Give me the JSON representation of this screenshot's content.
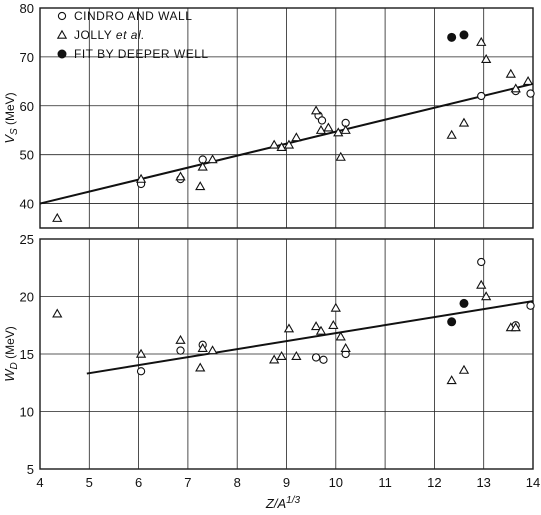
{
  "chart_data": [
    {
      "type": "scatter",
      "title": "",
      "xlabel": "Z/A^1/3",
      "ylabel": "V_S (MeV)",
      "ylabel_main": "V",
      "ylabel_sub": "S",
      "ylabel_unit": "(MeV)",
      "xlim": [
        4,
        14
      ],
      "ylim": [
        35,
        80
      ],
      "xticks": [
        "4",
        "5",
        "6",
        "7",
        "8",
        "9",
        "10",
        "11",
        "12",
        "13",
        "14"
      ],
      "yticks": [
        "40",
        "50",
        "60",
        "70",
        "80"
      ],
      "ytick_values": [
        40,
        50,
        60,
        70,
        80
      ],
      "grid": true,
      "legend": {
        "placement": "top-left",
        "entries": [
          {
            "marker": "circle-open",
            "label": "CINDRO AND WALL"
          },
          {
            "marker": "triangle-open",
            "label_pre": "JOLLY ",
            "label_ital": "et al.",
            "label": "JOLLY et al."
          },
          {
            "marker": "circle-filled",
            "label": "FIT BY DEEPER WELL"
          }
        ]
      },
      "fit_line": {
        "x": [
          4,
          14
        ],
        "y": [
          40,
          64.5
        ]
      },
      "series": [
        {
          "name": "CINDRO AND WALL",
          "marker": "circle-open",
          "points": [
            [
              6.05,
              44
            ],
            [
              6.85,
              45
            ],
            [
              7.3,
              49
            ],
            [
              9.65,
              58
            ],
            [
              9.72,
              57
            ],
            [
              10.2,
              56.5
            ],
            [
              12.95,
              62
            ],
            [
              13.65,
              63
            ],
            [
              13.95,
              62.5
            ]
          ]
        },
        {
          "name": "JOLLY et al.",
          "marker": "triangle-open",
          "points": [
            [
              4.35,
              37
            ],
            [
              6.05,
              45
            ],
            [
              6.85,
              45.5
            ],
            [
              7.25,
              43.5
            ],
            [
              7.3,
              47.5
            ],
            [
              7.5,
              49
            ],
            [
              8.75,
              52
            ],
            [
              8.9,
              51.5
            ],
            [
              9.05,
              52
            ],
            [
              9.2,
              53.5
            ],
            [
              9.6,
              59
            ],
            [
              9.7,
              55
            ],
            [
              9.85,
              55.5
            ],
            [
              10.05,
              54.5
            ],
            [
              10.1,
              49.5
            ],
            [
              10.2,
              55
            ],
            [
              12.35,
              54
            ],
            [
              12.6,
              56.5
            ],
            [
              12.95,
              73
            ],
            [
              13.05,
              69.5
            ],
            [
              13.55,
              66.5
            ],
            [
              13.65,
              63.5
            ],
            [
              13.9,
              65
            ]
          ]
        },
        {
          "name": "FIT BY DEEPER WELL",
          "marker": "circle-filled",
          "points": [
            [
              12.35,
              74
            ],
            [
              12.6,
              74.5
            ]
          ]
        }
      ]
    },
    {
      "type": "scatter",
      "title": "",
      "xlabel": "Z/A^1/3",
      "ylabel": "W_D (MeV)",
      "ylabel_main": "W",
      "ylabel_sub": "D",
      "ylabel_unit": "(MeV)",
      "xlim": [
        4,
        14
      ],
      "ylim": [
        5,
        25
      ],
      "xticks": [
        "4",
        "5",
        "6",
        "7",
        "8",
        "9",
        "10",
        "11",
        "12",
        "13",
        "14"
      ],
      "yticks": [
        "5",
        "10",
        "15",
        "20",
        "25"
      ],
      "ytick_values": [
        5,
        10,
        15,
        20,
        25
      ],
      "grid": true,
      "fit_line": {
        "x": [
          4.95,
          14
        ],
        "y": [
          13.3,
          19.6
        ]
      },
      "series": [
        {
          "name": "CINDRO AND WALL",
          "marker": "circle-open",
          "points": [
            [
              6.05,
              13.5
            ],
            [
              6.85,
              15.3
            ],
            [
              7.3,
              15.8
            ],
            [
              9.6,
              14.7
            ],
            [
              9.75,
              14.5
            ],
            [
              10.2,
              15
            ],
            [
              12.95,
              23
            ],
            [
              13.65,
              17.5
            ],
            [
              13.95,
              19.2
            ]
          ]
        },
        {
          "name": "JOLLY et al.",
          "marker": "triangle-open",
          "points": [
            [
              4.35,
              18.5
            ],
            [
              6.05,
              15
            ],
            [
              6.85,
              16.2
            ],
            [
              7.25,
              13.8
            ],
            [
              7.3,
              15.5
            ],
            [
              7.5,
              15.3
            ],
            [
              8.75,
              14.5
            ],
            [
              8.9,
              14.8
            ],
            [
              9.05,
              17.2
            ],
            [
              9.2,
              14.8
            ],
            [
              9.6,
              17.4
            ],
            [
              9.7,
              17
            ],
            [
              9.95,
              17.5
            ],
            [
              10.0,
              19
            ],
            [
              10.1,
              16.5
            ],
            [
              10.2,
              15.5
            ],
            [
              12.35,
              12.7
            ],
            [
              12.6,
              13.6
            ],
            [
              12.95,
              21
            ],
            [
              13.05,
              20
            ],
            [
              13.55,
              17.3
            ],
            [
              13.65,
              17.3
            ]
          ]
        },
        {
          "name": "FIT BY DEEPER WELL",
          "marker": "circle-filled",
          "points": [
            [
              12.35,
              17.8
            ],
            [
              12.6,
              19.4
            ]
          ]
        }
      ]
    }
  ]
}
